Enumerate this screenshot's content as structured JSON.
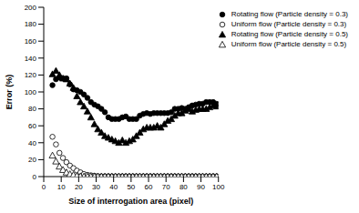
{
  "chart_data": {
    "type": "scatter",
    "x_label": "Size of interrogation area (pixel)",
    "y_label": "Error (%)",
    "xlim": [
      0,
      100
    ],
    "xticks": [
      0,
      10,
      20,
      30,
      40,
      50,
      60,
      70,
      80,
      90,
      100
    ],
    "ylim": [
      0,
      200
    ],
    "yticks": [
      0,
      20,
      40,
      60,
      80,
      100,
      120,
      140,
      160,
      180,
      200
    ],
    "grid": false,
    "legend": "top-right",
    "x": [
      5,
      7,
      9,
      11,
      13,
      15,
      17,
      19,
      21,
      23,
      25,
      27,
      29,
      31,
      33,
      35,
      37,
      39,
      41,
      43,
      45,
      47,
      49,
      51,
      53,
      55,
      57,
      59,
      61,
      63,
      65,
      67,
      69,
      71,
      73,
      75,
      77,
      79,
      81,
      83,
      85,
      87,
      89,
      91,
      93,
      95,
      97,
      99
    ],
    "series": [
      {
        "name": "Rotating flow (Particle density = 0.3)",
        "color": "#000000",
        "marker": "circle",
        "values": [
          108,
          115,
          117,
          116,
          116,
          109,
          103,
          102,
          100,
          97,
          93,
          88,
          85,
          83,
          80,
          76,
          70,
          68,
          68,
          68,
          70,
          71,
          68,
          68,
          68,
          72,
          74,
          75,
          74,
          75,
          75,
          75,
          75,
          75,
          76,
          80,
          80,
          81,
          80,
          82,
          84,
          85,
          86,
          86,
          88,
          88,
          88,
          86
        ]
      },
      {
        "name": "Uniform flow (Particle density = 0.3)",
        "color": "#000000",
        "marker": "open_circle",
        "values": [
          47,
          38,
          28,
          22,
          17,
          13,
          10,
          7,
          5,
          3,
          2,
          1.5,
          1,
          0.5,
          0.3,
          0.3,
          0.3,
          0.3,
          0.3,
          0.3,
          0.3,
          0.3,
          0.3,
          0.3,
          0.3,
          0.3,
          0.3,
          0.3,
          0.3,
          0.3,
          0.3,
          0.3,
          0.3,
          0.3,
          0.3,
          0.3,
          0.3,
          0.3,
          0.3,
          0.3,
          0.3,
          0.3,
          0.3,
          0.3,
          0.3,
          0.3,
          0.3,
          0.3
        ]
      },
      {
        "name": "Rotating flow (Particle density = 0.5)",
        "color": "#000000",
        "marker": "triangle",
        "values": [
          121,
          125,
          120,
          116,
          115,
          110,
          105,
          95,
          88,
          83,
          77,
          70,
          62,
          56,
          52,
          48,
          46,
          44,
          42,
          40,
          43,
          40,
          42,
          44,
          48,
          52,
          56,
          58,
          58,
          58,
          60,
          58,
          62,
          66,
          68,
          72,
          75,
          75,
          78,
          80,
          77,
          79,
          80,
          80,
          80,
          82,
          84,
          83
        ]
      },
      {
        "name": "Uniform flow (Particle density = 0.5)",
        "color": "#000000",
        "marker": "open_triangle",
        "values": [
          25,
          18,
          12,
          8,
          5,
          3,
          2,
          1,
          0.5,
          0.2,
          0.2,
          0.2,
          0.2,
          0.2,
          0.2,
          0.2,
          0.2,
          0.2,
          0.2,
          0.2,
          0.2,
          0.2,
          0.2,
          0.2,
          0.2,
          0.2,
          0.2,
          0.2,
          0.2,
          0.2,
          0.2,
          0.2,
          0.2,
          0.2,
          0.2,
          0.2,
          0.2,
          0.2,
          0.2,
          0.2,
          0.2,
          0.2,
          0.2,
          0.2,
          0.2,
          0.2,
          0.2,
          0.2
        ]
      }
    ]
  }
}
